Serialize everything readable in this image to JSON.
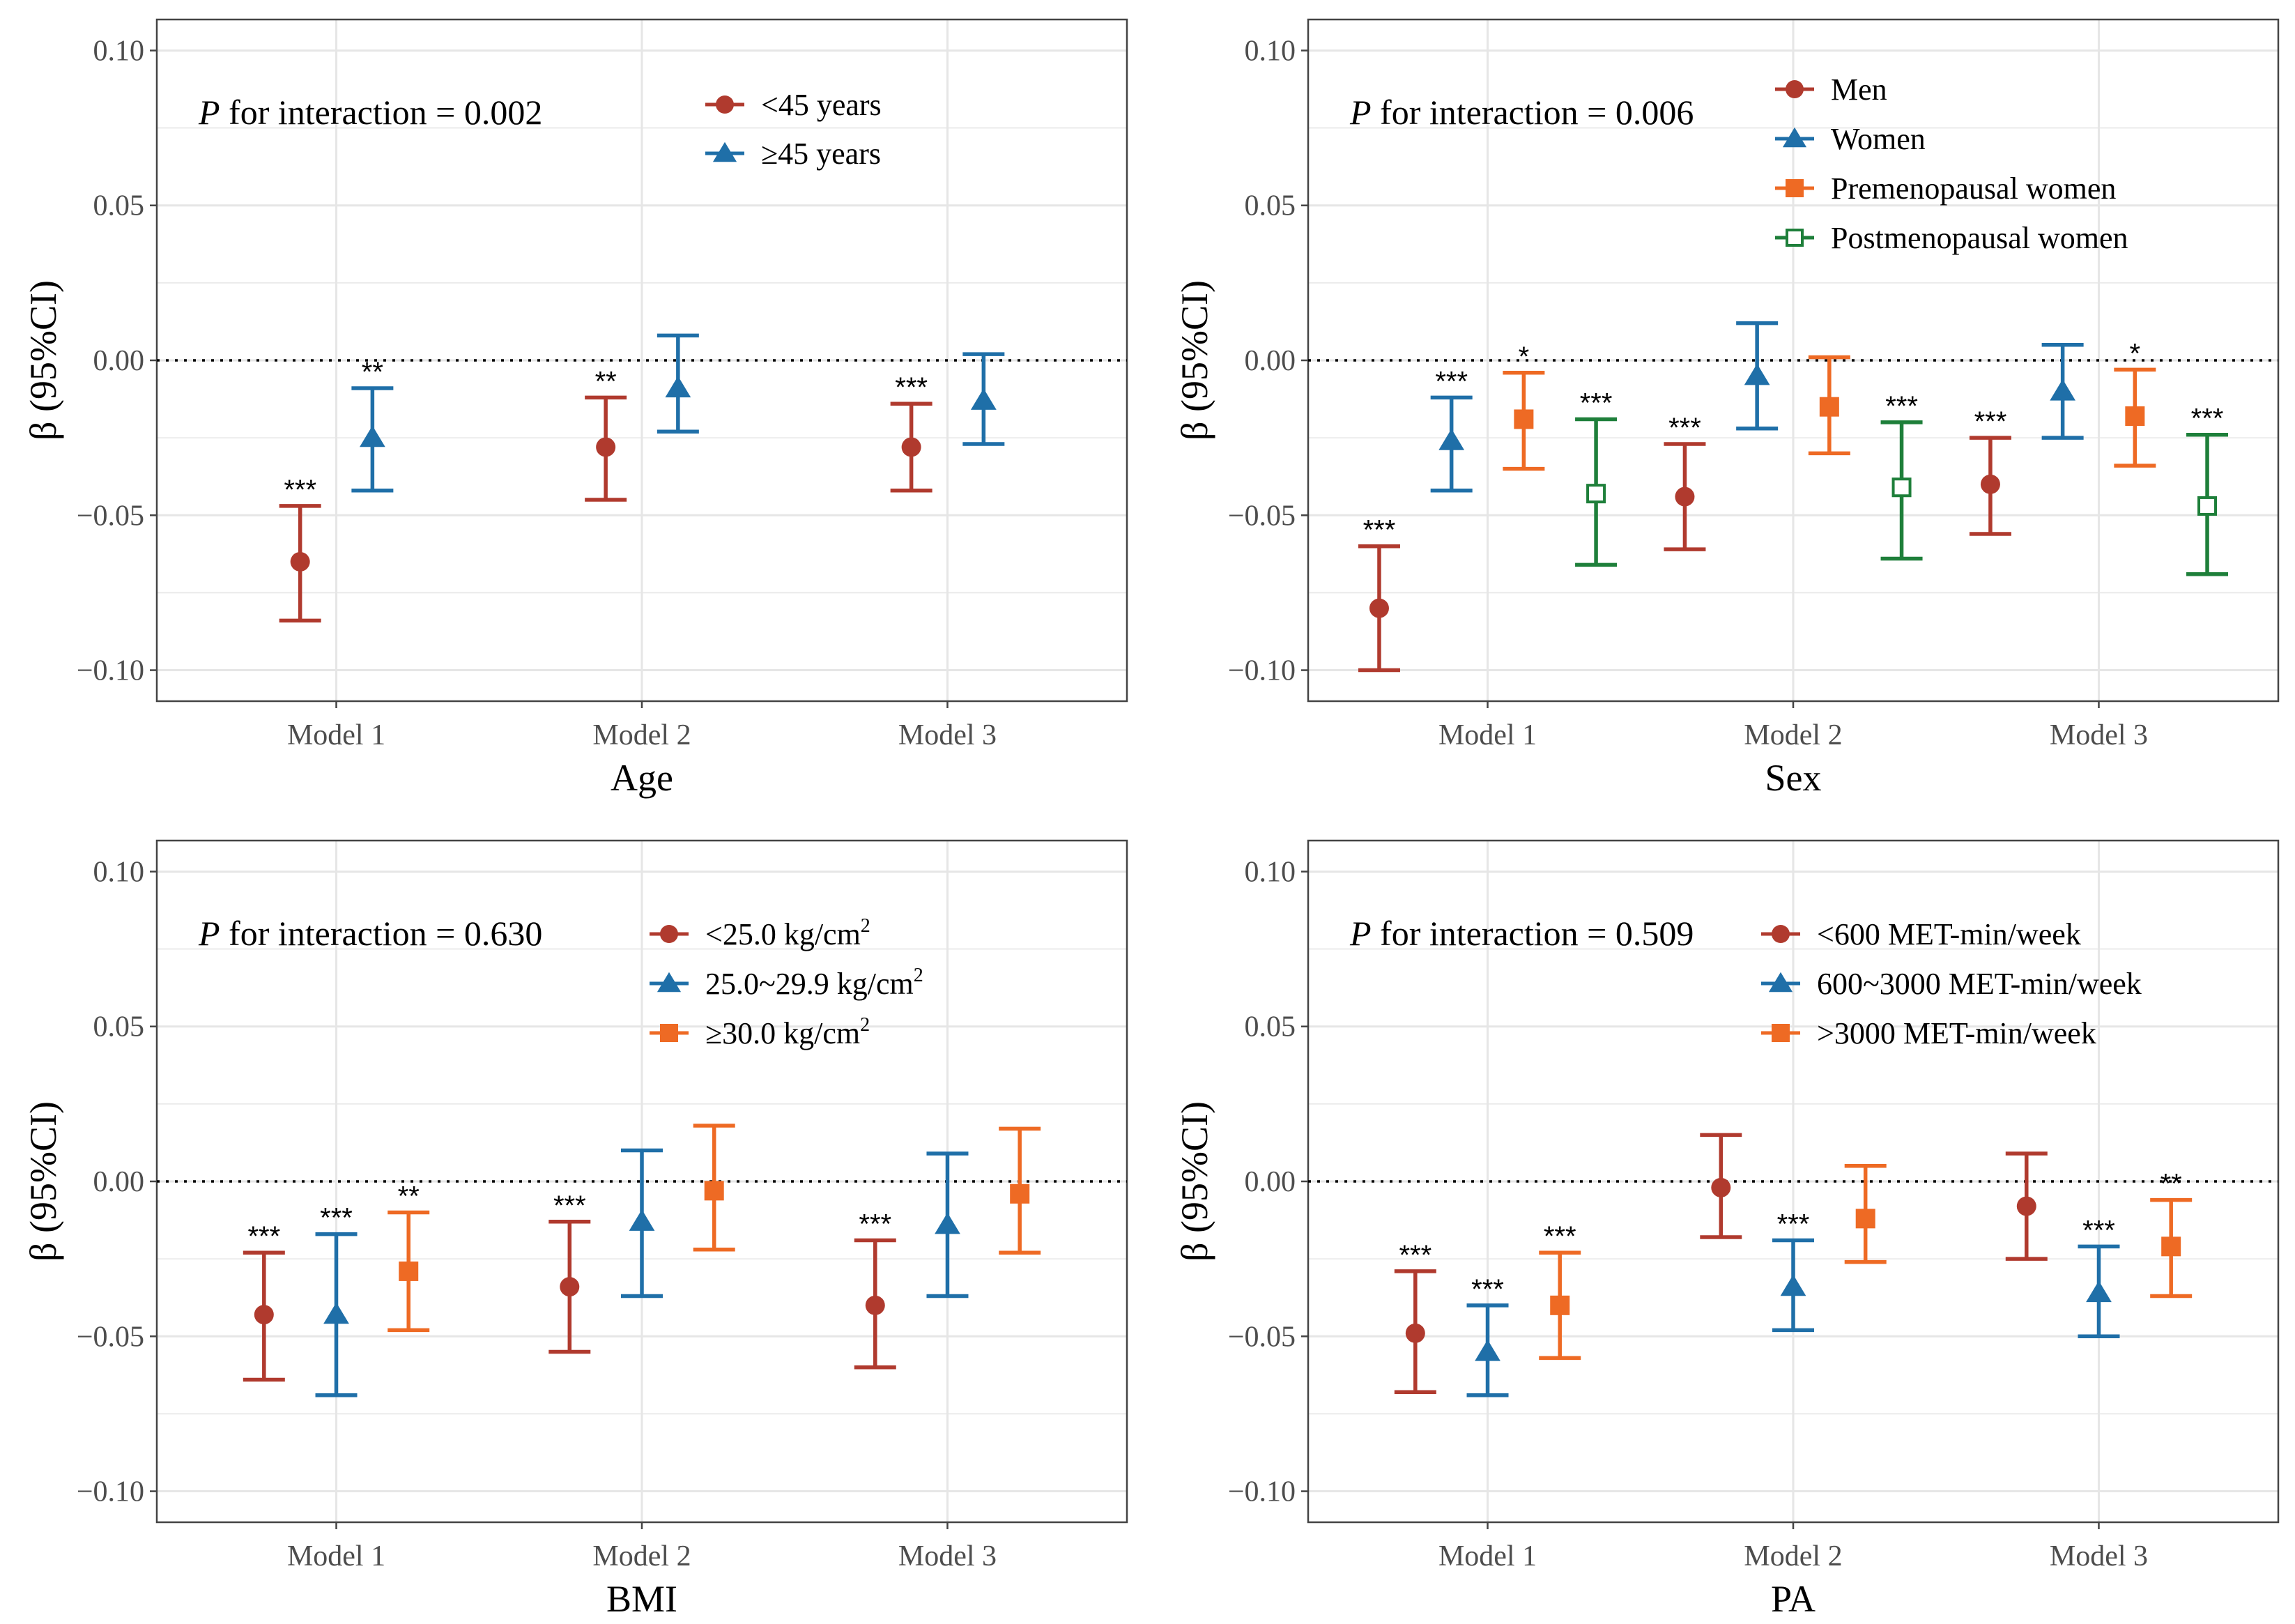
{
  "colors": {
    "red": "#b03a2e",
    "blue": "#1f6fa8",
    "orange": "#ee6a24",
    "green": "#1e7f3a",
    "grid": "#e6e6e6",
    "panel_border": "#444444",
    "axis_text": "#4d4d4d"
  },
  "chart_data": [
    {
      "type": "forest",
      "xlabel": "Age",
      "ylabel": "β (95%CI)",
      "categories": [
        "Model 1",
        "Model 2",
        "Model 3"
      ],
      "ylim": [
        -0.11,
        0.11
      ],
      "yticks": [
        0.1,
        0.05,
        0.0,
        -0.05,
        -0.1
      ],
      "ytick_labels": [
        "0.10",
        "0.05",
        "0.00",
        "−0.05",
        "−0.10"
      ],
      "reference_line": 0,
      "p_label_italic": "P",
      "p_label_rest": " for interaction = 0.002",
      "legend_position": "top-right",
      "series": [
        {
          "name": "<45 years",
          "marker": "circle",
          "color": "#b03a2e",
          "values": [
            -0.065,
            -0.028,
            -0.028
          ],
          "lower": [
            -0.084,
            -0.045,
            -0.042
          ],
          "upper": [
            -0.047,
            -0.012,
            -0.014
          ],
          "sig": [
            "***",
            "**",
            "***"
          ]
        },
        {
          "name": "≥45 years",
          "marker": "triangle",
          "color": "#1f6fa8",
          "values": [
            -0.025,
            -0.009,
            -0.013
          ],
          "lower": [
            -0.042,
            -0.023,
            -0.027
          ],
          "upper": [
            -0.009,
            0.008,
            0.002
          ],
          "sig": [
            "**",
            "",
            ""
          ]
        }
      ]
    },
    {
      "type": "forest",
      "xlabel": "Sex",
      "ylabel": "β (95%CI)",
      "categories": [
        "Model 1",
        "Model 2",
        "Model 3"
      ],
      "ylim": [
        -0.11,
        0.11
      ],
      "yticks": [
        0.1,
        0.05,
        0.0,
        -0.05,
        -0.1
      ],
      "ytick_labels": [
        "0.10",
        "0.05",
        "0.00",
        "−0.05",
        "−0.10"
      ],
      "reference_line": 0,
      "p_label_italic": "P",
      "p_label_rest": " for interaction = 0.006",
      "legend_position": "top-right",
      "series": [
        {
          "name": "Men",
          "marker": "circle",
          "color": "#b03a2e",
          "values": [
            -0.08,
            -0.044,
            -0.04
          ],
          "lower": [
            -0.1,
            -0.061,
            -0.056
          ],
          "upper": [
            -0.06,
            -0.027,
            -0.025
          ],
          "sig": [
            "***",
            "***",
            "***"
          ]
        },
        {
          "name": "Women",
          "marker": "triangle",
          "color": "#1f6fa8",
          "values": [
            -0.026,
            -0.005,
            -0.01
          ],
          "lower": [
            -0.042,
            -0.022,
            -0.025
          ],
          "upper": [
            -0.012,
            0.012,
            0.005
          ],
          "sig": [
            "***",
            "",
            ""
          ]
        },
        {
          "name": "Premenopausal women",
          "marker": "square",
          "color": "#ee6a24",
          "values": [
            -0.019,
            -0.015,
            -0.018
          ],
          "lower": [
            -0.035,
            -0.03,
            -0.034
          ],
          "upper": [
            -0.004,
            0.001,
            -0.003
          ],
          "sig": [
            "*",
            "",
            "*"
          ]
        },
        {
          "name": "Postmenopausal women",
          "marker": "open-square",
          "color": "#1e7f3a",
          "values": [
            -0.043,
            -0.041,
            -0.047
          ],
          "lower": [
            -0.066,
            -0.064,
            -0.069
          ],
          "upper": [
            -0.019,
            -0.02,
            -0.024
          ],
          "sig": [
            "***",
            "***",
            "***"
          ]
        }
      ]
    },
    {
      "type": "forest",
      "xlabel": "BMI",
      "ylabel": "β (95%CI)",
      "categories": [
        "Model 1",
        "Model 2",
        "Model 3"
      ],
      "ylim": [
        -0.11,
        0.11
      ],
      "yticks": [
        0.1,
        0.05,
        0.0,
        -0.05,
        -0.1
      ],
      "ytick_labels": [
        "0.10",
        "0.05",
        "0.00",
        "−0.05",
        "−0.10"
      ],
      "reference_line": 0,
      "p_label_italic": "P",
      "p_label_rest": " for interaction = 0.630",
      "legend_position": "top-right",
      "series": [
        {
          "name": "<25.0 kg/cm",
          "sup": "2",
          "marker": "circle",
          "color": "#b03a2e",
          "values": [
            -0.043,
            -0.034,
            -0.04
          ],
          "lower": [
            -0.064,
            -0.055,
            -0.06
          ],
          "upper": [
            -0.023,
            -0.013,
            -0.019
          ],
          "sig": [
            "***",
            "***",
            "***"
          ]
        },
        {
          "name": "25.0~29.9 kg/cm",
          "sup": "2",
          "marker": "triangle",
          "color": "#1f6fa8",
          "values": [
            -0.043,
            -0.013,
            -0.014
          ],
          "lower": [
            -0.069,
            -0.037,
            -0.037
          ],
          "upper": [
            -0.017,
            0.01,
            0.009
          ],
          "sig": [
            "***",
            "",
            ""
          ]
        },
        {
          "name": "≥30.0 kg/cm",
          "sup": "2",
          "marker": "square",
          "color": "#ee6a24",
          "values": [
            -0.029,
            -0.003,
            -0.004
          ],
          "lower": [
            -0.048,
            -0.022,
            -0.023
          ],
          "upper": [
            -0.01,
            0.018,
            0.017
          ],
          "sig": [
            "**",
            "",
            ""
          ]
        }
      ]
    },
    {
      "type": "forest",
      "xlabel": "PA",
      "ylabel": "β (95%CI)",
      "categories": [
        "Model 1",
        "Model 2",
        "Model 3"
      ],
      "ylim": [
        -0.11,
        0.11
      ],
      "yticks": [
        0.1,
        0.05,
        0.0,
        -0.05,
        -0.1
      ],
      "ytick_labels": [
        "0.10",
        "0.05",
        "0.00",
        "−0.05",
        "−0.10"
      ],
      "reference_line": 0,
      "p_label_italic": "P",
      "p_label_rest": " for interaction = 0.509",
      "legend_position": "top-right",
      "series": [
        {
          "name": "<600 MET-min/week",
          "marker": "circle",
          "color": "#b03a2e",
          "values": [
            -0.049,
            -0.002,
            -0.008
          ],
          "lower": [
            -0.068,
            -0.018,
            -0.025
          ],
          "upper": [
            -0.029,
            0.015,
            0.009
          ],
          "sig": [
            "***",
            "",
            ""
          ]
        },
        {
          "name": "600~3000 MET-min/week",
          "marker": "triangle",
          "color": "#1f6fa8",
          "values": [
            -0.055,
            -0.034,
            -0.036
          ],
          "lower": [
            -0.069,
            -0.048,
            -0.05
          ],
          "upper": [
            -0.04,
            -0.019,
            -0.021
          ],
          "sig": [
            "***",
            "***",
            "***"
          ]
        },
        {
          "name": ">3000 MET-min/week",
          "marker": "square",
          "color": "#ee6a24",
          "values": [
            -0.04,
            -0.012,
            -0.021
          ],
          "lower": [
            -0.057,
            -0.026,
            -0.037
          ],
          "upper": [
            -0.023,
            0.005,
            -0.006
          ],
          "sig": [
            "***",
            "",
            "**"
          ]
        }
      ]
    }
  ]
}
